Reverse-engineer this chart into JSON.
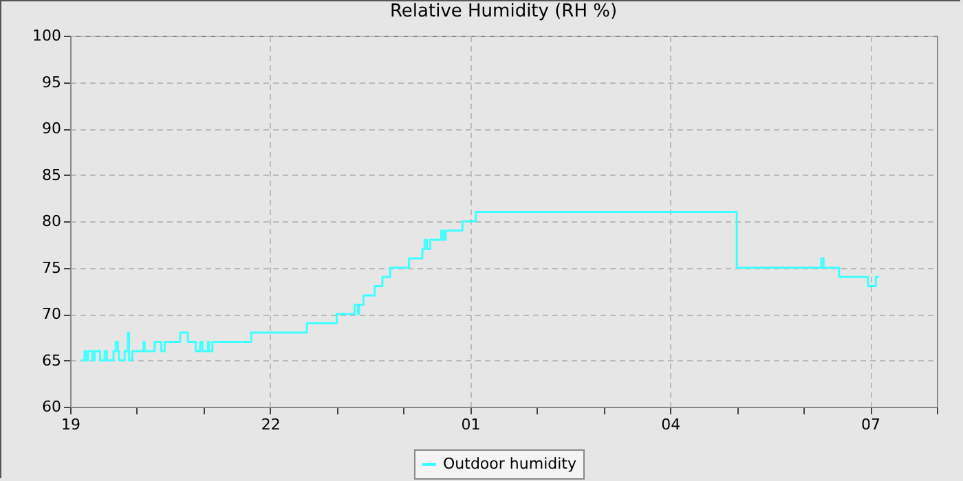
{
  "chart_data": {
    "type": "step",
    "title": "Relative Humidity (RH %)",
    "series": [
      {
        "name": "Outdoor humidity",
        "color": "#40ffff",
        "x": [
          "--01-01T19:10",
          "--01-01T19:13",
          "--01-01T19:14",
          "--01-01T19:16",
          "--01-01T19:20",
          "--01-01T19:22",
          "--01-01T19:27",
          "--01-01T19:31",
          "--01-01T19:33",
          "--01-01T19:39",
          "--01-01T19:41",
          "--01-01T19:43",
          "--01-01T19:44",
          "--01-01T19:49",
          "--01-01T19:52",
          "--01-01T19:53",
          "--01-01T19:56",
          "--01-01T20:06",
          "--01-01T20:07",
          "--01-01T20:16",
          "--01-01T20:22",
          "--01-01T20:25",
          "--01-01T20:39",
          "--01-01T20:46",
          "--01-01T20:53",
          "--01-01T20:57",
          "--01-01T20:59",
          "--01-01T21:04",
          "--01-01T21:05",
          "--01-01T21:08",
          "--01-01T21:43",
          "--01-01T22:33",
          "--01-01T23:00",
          "--01-01T23:16",
          "--01-01T23:19",
          "--01-01T23:20",
          "--01-01T23:24",
          "--01-01T23:34",
          "--01-01T23:41",
          "--01-01T23:48",
          "--01-02T00:05",
          "--01-02T00:17",
          "--01-02T00:19",
          "--01-02T00:21",
          "--01-02T00:24",
          "--01-02T00:34",
          "--01-02T00:36",
          "--01-02T00:38",
          "--01-02T00:53",
          "--01-02T01:05",
          "--01-02T05:00",
          "--01-02T06:16",
          "--01-02T06:18",
          "--01-02T06:32",
          "--01-02T06:58",
          "--01-02T07:05",
          "--01-02T07:08"
        ],
        "values": [
          65,
          66,
          65,
          66,
          65,
          66,
          65,
          66,
          65,
          66,
          67,
          66,
          65,
          66,
          68,
          65,
          66,
          67,
          66,
          67,
          66,
          67,
          68,
          67,
          66,
          67,
          66,
          67,
          66,
          67,
          68,
          69,
          70,
          71,
          70,
          71,
          72,
          73,
          74,
          75,
          76,
          77,
          78,
          77,
          78,
          79,
          78,
          79,
          80,
          81,
          75,
          76,
          75,
          74,
          73,
          74,
          74
        ]
      }
    ],
    "xlim": [
      "--01-01T19:00",
      "--01-02T08:00"
    ],
    "xticks": [
      {
        "value": "--01-01T19:00",
        "label": "19"
      },
      {
        "value": "--01-01T20:00",
        "label": null
      },
      {
        "value": "--01-01T21:00",
        "label": null
      },
      {
        "value": "--01-01T22:00",
        "label": "22"
      },
      {
        "value": "--01-01T23:00",
        "label": null
      },
      {
        "value": "--01-02T00:00",
        "label": null
      },
      {
        "value": "--01-02T01:00",
        "label": "01"
      },
      {
        "value": "--01-02T02:00",
        "label": null
      },
      {
        "value": "--01-02T03:00",
        "label": null
      },
      {
        "value": "--01-02T04:00",
        "label": "04"
      },
      {
        "value": "--01-02T05:00",
        "label": null
      },
      {
        "value": "--01-02T06:00",
        "label": null
      },
      {
        "value": "--01-02T07:00",
        "label": "07"
      },
      {
        "value": "--01-02T08:00",
        "label": null
      }
    ],
    "ylim": [
      60,
      100
    ],
    "yticks": [
      60,
      65,
      70,
      75,
      80,
      85,
      90,
      95,
      100
    ],
    "grid": true,
    "legend": "bottom",
    "marker": "none",
    "line_style": "solid"
  }
}
